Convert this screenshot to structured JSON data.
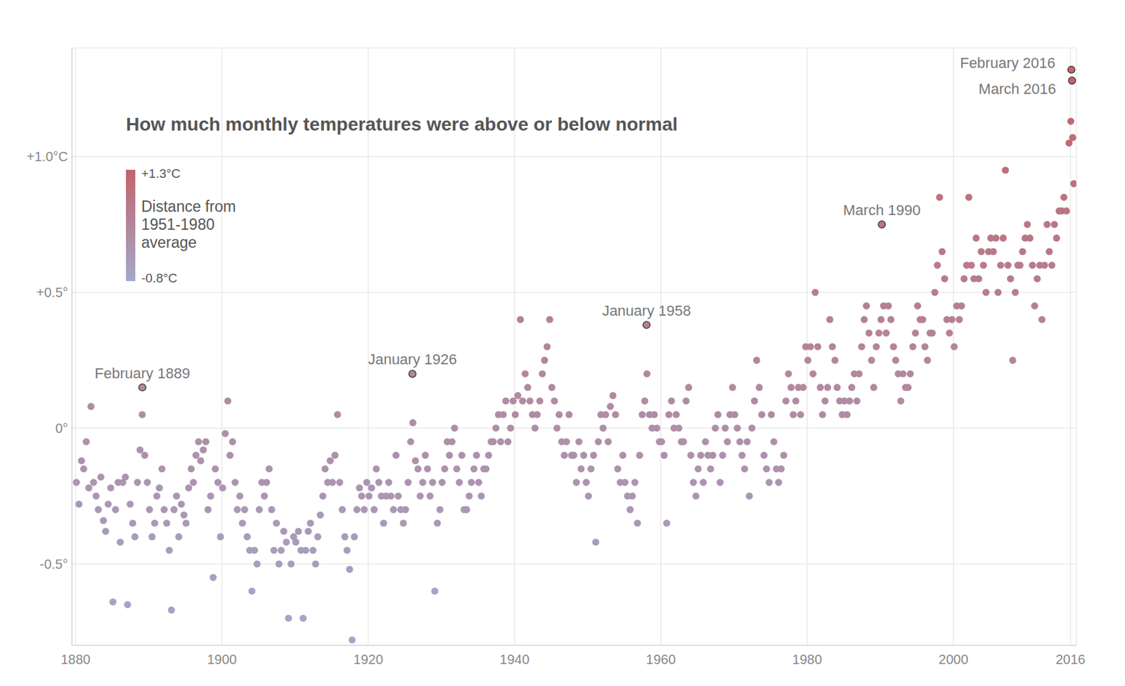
{
  "chart_data": {
    "type": "scatter",
    "title": "How much monthly temperatures were above or below normal",
    "marker": "circle",
    "grid": true,
    "xlim": [
      1879.5,
      2016.8
    ],
    "xticks": [
      1880,
      1900,
      1920,
      1940,
      1960,
      1980,
      2000,
      2016
    ],
    "ylim": [
      -0.8,
      1.4
    ],
    "yticks": [
      {
        "value": -0.5,
        "label": "-0.5°"
      },
      {
        "value": 0,
        "label": "0°"
      },
      {
        "value": 0.5,
        "label": "+0.5°"
      },
      {
        "value": 1.0,
        "label": "+1.0°C"
      }
    ],
    "colorbar": {
      "title": [
        "Distance from",
        "1951-1980",
        "average"
      ],
      "range": [
        -0.8,
        1.3
      ],
      "ticks": [
        {
          "value": 1.3,
          "label": "+1.3°C"
        },
        {
          "value": -0.8,
          "label": "-0.8°C"
        }
      ],
      "colors": [
        "#a3a8cc",
        "#c2646a"
      ]
    },
    "annotations": [
      {
        "x": 1889.12,
        "y": 0.15,
        "text": "February 1889"
      },
      {
        "x": 1926.04,
        "y": 0.2,
        "text": "January 1926"
      },
      {
        "x": 1958.04,
        "y": 0.38,
        "text": "January 1958"
      },
      {
        "x": 1990.21,
        "y": 0.75,
        "text": "March 1990"
      },
      {
        "x": 2016.12,
        "y": 1.32,
        "text": "February 2016"
      },
      {
        "x": 2016.21,
        "y": 1.28,
        "text": "March 2016"
      }
    ],
    "x": [
      1880.1,
      1880.45,
      1880.8,
      1881.1,
      1881.45,
      1881.8,
      1882.1,
      1882.45,
      1882.8,
      1883.1,
      1883.45,
      1883.8,
      1884.1,
      1884.45,
      1884.8,
      1885.1,
      1885.45,
      1885.8,
      1886.1,
      1886.45,
      1886.8,
      1887.1,
      1887.45,
      1887.8,
      1888.1,
      1888.45,
      1888.8,
      1889.1,
      1889.45,
      1889.8,
      1890.1,
      1890.45,
      1890.8,
      1891.1,
      1891.45,
      1891.8,
      1892.1,
      1892.45,
      1892.8,
      1893.1,
      1893.45,
      1893.8,
      1894.1,
      1894.45,
      1894.8,
      1895.1,
      1895.45,
      1895.8,
      1896.1,
      1896.45,
      1896.8,
      1897.1,
      1897.45,
      1897.8,
      1898.1,
      1898.45,
      1898.8,
      1899.1,
      1899.45,
      1899.8,
      1900.1,
      1900.45,
      1900.8,
      1901.1,
      1901.45,
      1901.8,
      1902.1,
      1902.45,
      1902.8,
      1903.1,
      1903.45,
      1903.8,
      1904.1,
      1904.45,
      1904.8,
      1905.1,
      1905.45,
      1905.8,
      1906.1,
      1906.45,
      1906.8,
      1907.1,
      1907.45,
      1907.8,
      1908.1,
      1908.45,
      1908.8,
      1909.1,
      1909.45,
      1909.8,
      1910.1,
      1910.45,
      1910.8,
      1911.1,
      1911.45,
      1911.8,
      1912.1,
      1912.45,
      1912.8,
      1913.1,
      1913.45,
      1913.8,
      1914.1,
      1914.45,
      1914.8,
      1915.1,
      1915.45,
      1915.8,
      1916.1,
      1916.45,
      1916.8,
      1917.1,
      1917.45,
      1917.8,
      1918.1,
      1918.45,
      1918.8,
      1919.1,
      1919.45,
      1919.8,
      1920.1,
      1920.45,
      1920.8,
      1921.1,
      1921.45,
      1921.8,
      1922.1,
      1922.45,
      1922.8,
      1923.1,
      1923.45,
      1923.8,
      1924.1,
      1924.45,
      1924.8,
      1925.1,
      1925.45,
      1925.8,
      1926.1,
      1926.45,
      1926.8,
      1927.1,
      1927.45,
      1927.8,
      1928.1,
      1928.45,
      1928.8,
      1929.1,
      1929.45,
      1929.8,
      1930.1,
      1930.45,
      1930.8,
      1931.1,
      1931.45,
      1931.8,
      1932.1,
      1932.45,
      1932.8,
      1933.1,
      1933.45,
      1933.8,
      1934.1,
      1934.45,
      1934.8,
      1935.1,
      1935.45,
      1935.8,
      1936.1,
      1936.45,
      1936.8,
      1937.1,
      1937.45,
      1937.8,
      1938.1,
      1938.45,
      1938.8,
      1939.1,
      1939.45,
      1939.8,
      1940.1,
      1940.45,
      1940.8,
      1941.1,
      1941.45,
      1941.8,
      1942.1,
      1942.45,
      1942.8,
      1943.1,
      1943.45,
      1943.8,
      1944.1,
      1944.45,
      1944.8,
      1945.1,
      1945.45,
      1945.8,
      1946.1,
      1946.45,
      1946.8,
      1947.1,
      1947.45,
      1947.8,
      1948.1,
      1948.45,
      1948.8,
      1949.1,
      1949.45,
      1949.8,
      1950.1,
      1950.45,
      1950.8,
      1951.1,
      1951.45,
      1951.8,
      1952.1,
      1952.45,
      1952.8,
      1953.1,
      1953.45,
      1953.8,
      1954.1,
      1954.45,
      1954.8,
      1955.1,
      1955.45,
      1955.8,
      1956.1,
      1956.45,
      1956.8,
      1957.1,
      1957.45,
      1957.8,
      1958.1,
      1958.45,
      1958.8,
      1959.1,
      1959.45,
      1959.8,
      1960.1,
      1960.45,
      1960.8,
      1961.1,
      1961.45,
      1961.8,
      1962.1,
      1962.45,
      1962.8,
      1963.1,
      1963.45,
      1963.8,
      1964.1,
      1964.45,
      1964.8,
      1965.1,
      1965.45,
      1965.8,
      1966.1,
      1966.45,
      1966.8,
      1967.1,
      1967.45,
      1967.8,
      1968.1,
      1968.45,
      1968.8,
      1969.1,
      1969.45,
      1969.8,
      1970.1,
      1970.45,
      1970.8,
      1971.1,
      1971.45,
      1971.8,
      1972.1,
      1972.45,
      1972.8,
      1973.1,
      1973.45,
      1973.8,
      1974.1,
      1974.45,
      1974.8,
      1975.1,
      1975.45,
      1975.8,
      1976.1,
      1976.45,
      1976.8,
      1977.1,
      1977.45,
      1977.8,
      1978.1,
      1978.45,
      1978.8,
      1979.1,
      1979.45,
      1979.8,
      1980.1,
      1980.45,
      1980.8,
      1981.1,
      1981.45,
      1981.8,
      1982.1,
      1982.45,
      1982.8,
      1983.1,
      1983.45,
      1983.8,
      1984.1,
      1984.45,
      1984.8,
      1985.1,
      1985.45,
      1985.8,
      1986.1,
      1986.45,
      1986.8,
      1987.1,
      1987.45,
      1987.8,
      1988.1,
      1988.45,
      1988.8,
      1989.1,
      1989.45,
      1989.8,
      1990.1,
      1990.45,
      1990.8,
      1991.1,
      1991.45,
      1991.8,
      1992.1,
      1992.45,
      1992.8,
      1993.1,
      1993.45,
      1993.8,
      1994.1,
      1994.45,
      1994.8,
      1995.1,
      1995.45,
      1995.8,
      1996.1,
      1996.45,
      1996.8,
      1997.1,
      1997.45,
      1997.8,
      1998.1,
      1998.45,
      1998.8,
      1999.1,
      1999.45,
      1999.8,
      2000.1,
      2000.45,
      2000.8,
      2001.1,
      2001.45,
      2001.8,
      2002.1,
      2002.45,
      2002.8,
      2003.1,
      2003.45,
      2003.8,
      2004.1,
      2004.45,
      2004.8,
      2005.1,
      2005.45,
      2005.8,
      2006.1,
      2006.45,
      2006.8,
      2007.1,
      2007.45,
      2007.8,
      2008.1,
      2008.45,
      2008.8,
      2009.1,
      2009.45,
      2009.8,
      2010.1,
      2010.45,
      2010.8,
      2011.1,
      2011.45,
      2011.8,
      2012.1,
      2012.45,
      2012.8,
      2013.1,
      2013.45,
      2013.8,
      2014.1,
      2014.45,
      2014.8,
      2015.1,
      2015.45,
      2015.8,
      2016.04,
      2016.3,
      2016.45
    ],
    "values": [
      -0.2,
      -0.28,
      -0.12,
      -0.15,
      -0.05,
      -0.22,
      0.08,
      -0.2,
      -0.25,
      -0.3,
      -0.18,
      -0.34,
      -0.38,
      -0.28,
      -0.22,
      -0.64,
      -0.3,
      -0.2,
      -0.42,
      -0.2,
      -0.18,
      -0.65,
      -0.28,
      -0.35,
      -0.4,
      -0.2,
      -0.08,
      0.05,
      -0.1,
      -0.2,
      -0.3,
      -0.4,
      -0.35,
      -0.25,
      -0.22,
      -0.15,
      -0.3,
      -0.35,
      -0.45,
      -0.67,
      -0.3,
      -0.25,
      -0.4,
      -0.28,
      -0.32,
      -0.35,
      -0.22,
      -0.15,
      -0.2,
      -0.1,
      -0.05,
      -0.12,
      -0.08,
      -0.05,
      -0.3,
      -0.25,
      -0.55,
      -0.15,
      -0.2,
      -0.4,
      -0.22,
      -0.02,
      0.1,
      -0.1,
      -0.05,
      -0.2,
      -0.3,
      -0.25,
      -0.35,
      -0.3,
      -0.4,
      -0.45,
      -0.6,
      -0.45,
      -0.5,
      -0.3,
      -0.2,
      -0.25,
      -0.2,
      -0.15,
      -0.3,
      -0.45,
      -0.35,
      -0.5,
      -0.45,
      -0.38,
      -0.42,
      -0.7,
      -0.5,
      -0.4,
      -0.42,
      -0.38,
      -0.45,
      -0.7,
      -0.45,
      -0.38,
      -0.35,
      -0.45,
      -0.5,
      -0.4,
      -0.32,
      -0.25,
      -0.15,
      -0.2,
      -0.12,
      -0.2,
      -0.1,
      0.05,
      -0.2,
      -0.3,
      -0.4,
      -0.45,
      -0.52,
      -0.78,
      -0.4,
      -0.3,
      -0.22,
      -0.25,
      -0.3,
      -0.2,
      -0.25,
      -0.22,
      -0.3,
      -0.15,
      -0.2,
      -0.25,
      -0.35,
      -0.25,
      -0.2,
      -0.25,
      -0.3,
      -0.1,
      -0.25,
      -0.3,
      -0.35,
      -0.3,
      -0.2,
      -0.05,
      0.02,
      -0.12,
      -0.15,
      -0.25,
      -0.2,
      -0.1,
      -0.15,
      -0.25,
      -0.2,
      -0.6,
      -0.35,
      -0.3,
      -0.2,
      -0.15,
      -0.05,
      -0.1,
      -0.05,
      0.0,
      -0.15,
      -0.2,
      -0.1,
      -0.3,
      -0.3,
      -0.25,
      -0.2,
      -0.15,
      -0.1,
      -0.2,
      -0.25,
      -0.15,
      -0.15,
      -0.1,
      -0.05,
      -0.05,
      0.0,
      0.05,
      -0.05,
      0.05,
      0.1,
      -0.05,
      0.0,
      0.1,
      0.05,
      0.12,
      0.4,
      0.1,
      0.2,
      0.15,
      0.1,
      0.05,
      0.0,
      0.05,
      0.1,
      0.2,
      0.25,
      0.3,
      0.4,
      0.15,
      0.1,
      0.0,
      0.05,
      -0.05,
      -0.1,
      -0.05,
      0.05,
      -0.1,
      -0.1,
      -0.2,
      -0.05,
      -0.15,
      -0.1,
      -0.2,
      -0.25,
      -0.15,
      -0.1,
      -0.42,
      -0.05,
      0.05,
      0.0,
      0.05,
      -0.05,
      0.08,
      0.12,
      0.05,
      -0.15,
      -0.2,
      -0.1,
      -0.2,
      -0.25,
      -0.3,
      -0.25,
      -0.2,
      -0.35,
      -0.1,
      0.05,
      0.1,
      0.2,
      0.05,
      0.0,
      0.05,
      0.0,
      -0.05,
      -0.05,
      -0.1,
      -0.35,
      0.05,
      0.1,
      0.0,
      0.05,
      0.0,
      -0.05,
      -0.05,
      0.1,
      0.15,
      -0.1,
      -0.2,
      -0.25,
      -0.15,
      -0.1,
      -0.2,
      -0.05,
      -0.1,
      -0.15,
      -0.1,
      0.0,
      0.05,
      -0.2,
      -0.1,
      0.0,
      -0.05,
      0.05,
      0.15,
      0.05,
      0.0,
      -0.05,
      -0.1,
      -0.15,
      -0.05,
      -0.25,
      0.0,
      0.1,
      0.25,
      0.15,
      0.05,
      -0.1,
      -0.15,
      -0.2,
      0.05,
      -0.05,
      -0.15,
      -0.2,
      -0.15,
      -0.1,
      0.1,
      0.2,
      0.15,
      0.05,
      0.1,
      0.15,
      0.05,
      0.15,
      0.3,
      0.25,
      0.3,
      0.2,
      0.5,
      0.3,
      0.15,
      0.05,
      0.1,
      0.15,
      0.4,
      0.3,
      0.25,
      0.15,
      0.1,
      0.05,
      0.1,
      0.05,
      0.1,
      0.15,
      0.2,
      0.1,
      0.2,
      0.3,
      0.4,
      0.45,
      0.35,
      0.25,
      0.15,
      0.3,
      0.35,
      0.4,
      0.45,
      0.35,
      0.45,
      0.4,
      0.3,
      0.25,
      0.2,
      0.1,
      0.2,
      0.15,
      0.15,
      0.2,
      0.3,
      0.35,
      0.45,
      0.4,
      0.4,
      0.3,
      0.25,
      0.35,
      0.35,
      0.5,
      0.6,
      0.85,
      0.65,
      0.55,
      0.4,
      0.35,
      0.4,
      0.3,
      0.45,
      0.4,
      0.45,
      0.55,
      0.6,
      0.85,
      0.6,
      0.55,
      0.7,
      0.55,
      0.65,
      0.6,
      0.5,
      0.65,
      0.7,
      0.65,
      0.7,
      0.5,
      0.6,
      0.7,
      0.95,
      0.6,
      0.55,
      0.25,
      0.5,
      0.6,
      0.6,
      0.65,
      0.7,
      0.75,
      0.7,
      0.6,
      0.45,
      0.55,
      0.6,
      0.4,
      0.6,
      0.75,
      0.65,
      0.6,
      0.75,
      0.7,
      0.8,
      0.8,
      0.85,
      0.8,
      1.05,
      1.13,
      1.07,
      0.9
    ]
  }
}
